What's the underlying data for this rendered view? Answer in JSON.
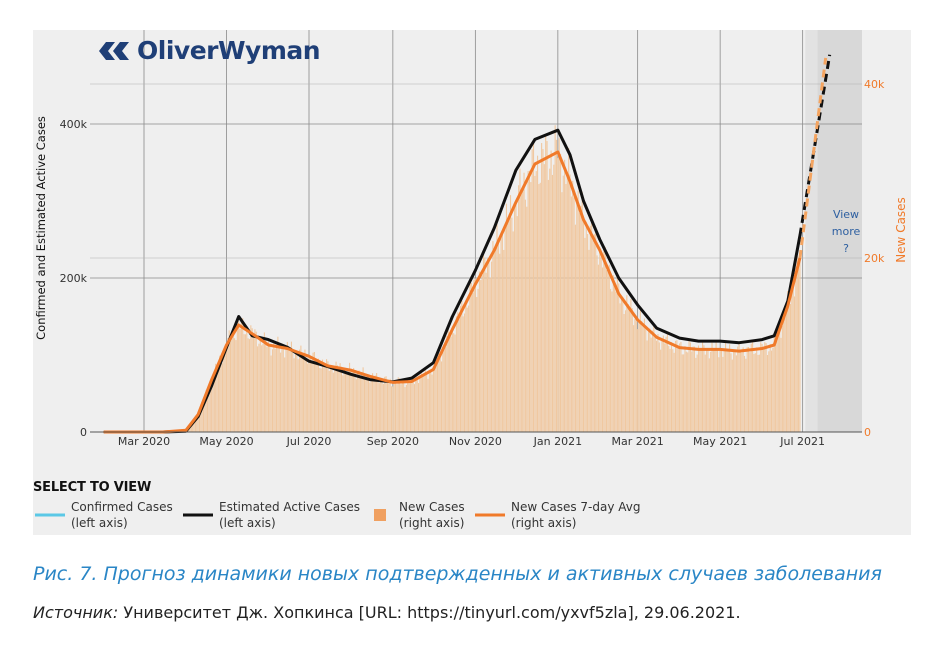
{
  "logo": {
    "text": "OliverWyman"
  },
  "chart_data": {
    "type": "line",
    "x": [
      "2020-02-01",
      "2020-02-15",
      "2020-03-01",
      "2020-03-15",
      "2020-04-01",
      "2020-04-10",
      "2020-04-20",
      "2020-05-01",
      "2020-05-10",
      "2020-05-20",
      "2020-06-01",
      "2020-06-15",
      "2020-07-01",
      "2020-07-15",
      "2020-08-01",
      "2020-08-15",
      "2020-09-01",
      "2020-09-15",
      "2020-10-01",
      "2020-10-15",
      "2020-11-01",
      "2020-11-15",
      "2020-12-01",
      "2020-12-15",
      "2021-01-01",
      "2021-01-10",
      "2021-01-20",
      "2021-02-01",
      "2021-02-15",
      "2021-03-01",
      "2021-03-15",
      "2021-04-01",
      "2021-04-15",
      "2021-05-01",
      "2021-05-15",
      "2021-06-01",
      "2021-06-10",
      "2021-06-20",
      "2021-06-29"
    ],
    "series": [
      {
        "name": "Estimated Active Cases",
        "axis": "left",
        "color": "#111111",
        "values": [
          0,
          0,
          0,
          0,
          1000,
          20000,
          60000,
          110000,
          150000,
          125000,
          120000,
          110000,
          92000,
          85000,
          75000,
          68000,
          65000,
          70000,
          90000,
          150000,
          210000,
          265000,
          340000,
          380000,
          392000,
          360000,
          300000,
          250000,
          200000,
          165000,
          135000,
          122000,
          118000,
          118000,
          116000,
          120000,
          125000,
          170000,
          255000
        ]
      },
      {
        "name": "New Cases 7-day Avg",
        "axis": "right",
        "color": "#f07a2a",
        "values": [
          0,
          0,
          0,
          0,
          200,
          2000,
          6000,
          10000,
          12300,
          11300,
          10000,
          9600,
          8700,
          7600,
          7100,
          6400,
          5700,
          5800,
          7200,
          11800,
          17000,
          20900,
          26400,
          30800,
          32200,
          28800,
          24400,
          20900,
          15900,
          12900,
          10900,
          9700,
          9500,
          9500,
          9300,
          9600,
          10000,
          14500,
          20000
        ]
      }
    ],
    "forecast": {
      "label": "View more ?",
      "end_x": "2021-07-21",
      "left_axis_end": 490000,
      "right_axis_end": 43000
    },
    "bars": {
      "name": "New Cases",
      "axis": "right",
      "color": "#f0c8a0"
    },
    "x_ticks": [
      "Mar 2020",
      "May 2020",
      "Jul 2020",
      "Sep 2020",
      "Nov 2020",
      "Jan 2021",
      "Mar 2021",
      "May 2021",
      "Jul 2021"
    ],
    "y_left": {
      "label": "Confirmed and Estimated Active Cases",
      "ticks": [
        "0",
        "200k",
        "400k"
      ],
      "range": [
        0,
        520000
      ]
    },
    "y_right": {
      "label": "New Cases",
      "ticks": [
        "0",
        "20k",
        "40k"
      ],
      "range": [
        0,
        45500
      ],
      "color": "#f07a2a"
    },
    "grid": true
  },
  "legend": {
    "title": "SELECT TO VIEW",
    "items": [
      {
        "line1": "Confirmed Cases",
        "line2": "(left axis)",
        "swatch": "line",
        "color": "#5bc8e6"
      },
      {
        "line1": "Estimated Active Cases",
        "line2": "(left axis)",
        "swatch": "line",
        "color": "#111111"
      },
      {
        "line1": "New Cases",
        "line2": "(right axis)",
        "swatch": "square",
        "color": "#f0a060"
      },
      {
        "line1": "New Cases 7-day Avg",
        "line2": "(right axis)",
        "swatch": "line",
        "color": "#f07a2a"
      }
    ]
  },
  "view_more": {
    "line1": "View",
    "line2": "more",
    "line3": "?"
  },
  "caption": "Рис. 7. Прогноз динамики новых подтвержденных и активных случаев заболевания",
  "source": {
    "label": "Источник:",
    "text": " Университет Дж. Хопкинса [URL: https://tinyurl.com/yxvf5zla], 29.06.2021."
  }
}
